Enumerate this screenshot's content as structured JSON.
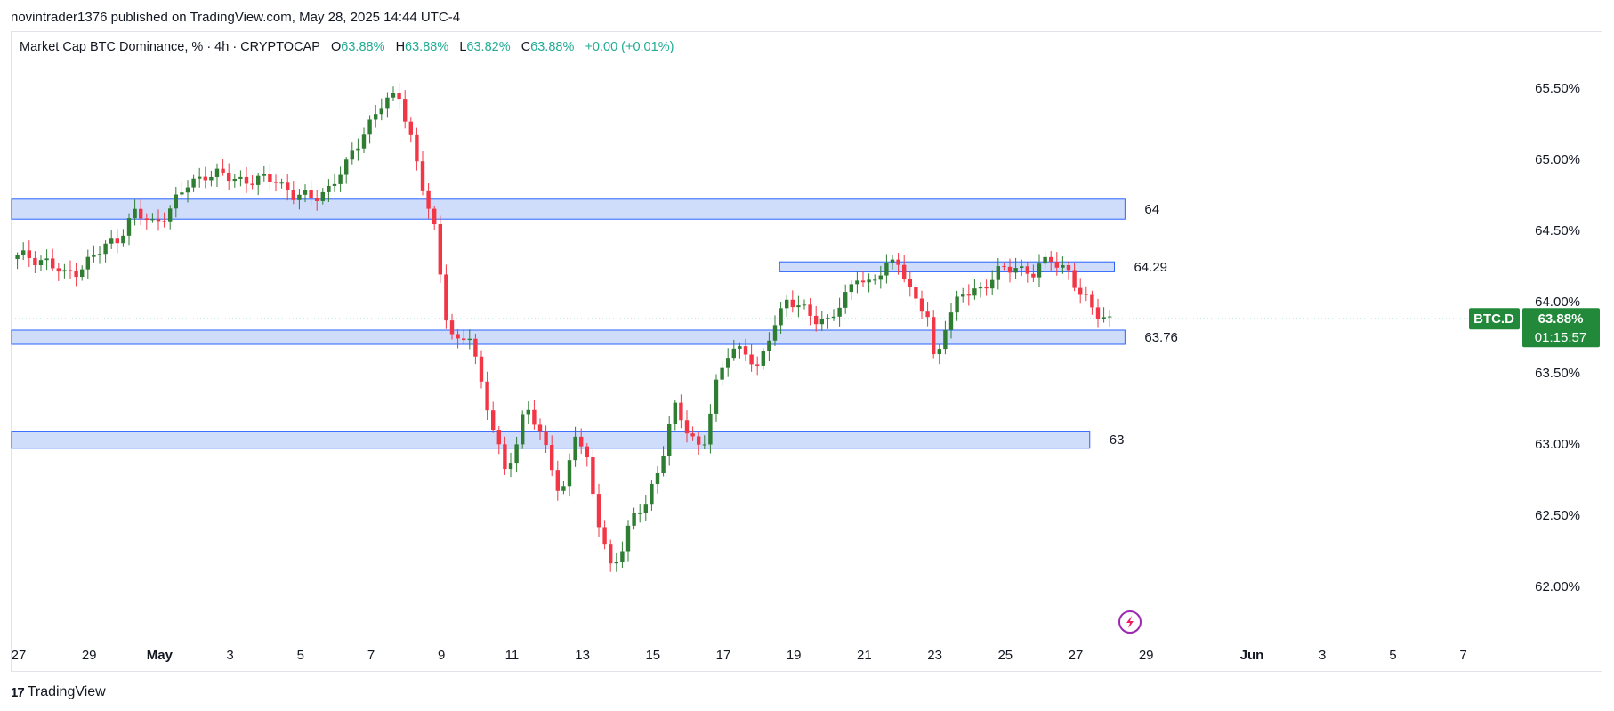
{
  "header": {
    "published": "novintrader1376 published on TradingView.com, May 28, 2025 14:44 UTC-4"
  },
  "legend": {
    "symbol": "Market Cap BTC Dominance, % · 4h · CRYPTOCAP",
    "o_label": "O",
    "o_value": "63.88%",
    "h_label": "H",
    "h_value": "63.88%",
    "l_label": "L",
    "l_value": "63.82%",
    "c_label": "C",
    "c_value": "63.88%",
    "change": "+0.00 (+0.01%)"
  },
  "footer": {
    "brand": "TradingView",
    "logo": "17"
  },
  "colors": {
    "up": "#26a69a",
    "up_body": "#2e7d32",
    "down": "#f23645",
    "zone_fill": "#cfddfb",
    "zone_stroke": "#2962ff",
    "badge": "#22883a"
  },
  "chart_data": {
    "type": "candlestick",
    "symbol": "BTC.D",
    "timeframe": "4h",
    "ylim": [
      61.7,
      65.75
    ],
    "yticks": [
      "65.50%",
      "65.00%",
      "64.50%",
      "64.00%",
      "63.50%",
      "63.00%",
      "62.50%",
      "62.00%"
    ],
    "ytick_values": [
      65.5,
      65.0,
      64.5,
      64.0,
      63.5,
      63.0,
      62.5,
      62.0
    ],
    "x_range_days": [
      0,
      40
    ],
    "xticks": [
      {
        "day": 0,
        "label": "27"
      },
      {
        "day": 2,
        "label": "29"
      },
      {
        "day": 4,
        "label": "May"
      },
      {
        "day": 6,
        "label": "3"
      },
      {
        "day": 8,
        "label": "5"
      },
      {
        "day": 10,
        "label": "7"
      },
      {
        "day": 12,
        "label": "9"
      },
      {
        "day": 14,
        "label": "11"
      },
      {
        "day": 16,
        "label": "13"
      },
      {
        "day": 18,
        "label": "15"
      },
      {
        "day": 20,
        "label": "17"
      },
      {
        "day": 22,
        "label": "19"
      },
      {
        "day": 24,
        "label": "21"
      },
      {
        "day": 26,
        "label": "23"
      },
      {
        "day": 28,
        "label": "25"
      },
      {
        "day": 30,
        "label": "27"
      },
      {
        "day": 32,
        "label": "29"
      },
      {
        "day": 35,
        "label": "Jun"
      },
      {
        "day": 37,
        "label": "3"
      },
      {
        "day": 39,
        "label": "5"
      },
      {
        "day": 41,
        "label": "7"
      }
    ],
    "zones": [
      {
        "label": "64",
        "top": 64.72,
        "bottom": 64.58,
        "start_day": 0,
        "end_day": 31.6
      },
      {
        "label": "64.29",
        "top": 64.28,
        "bottom": 64.21,
        "start_day": 21.8,
        "end_day": 31.3
      },
      {
        "label": "63.76",
        "top": 63.8,
        "bottom": 63.7,
        "start_day": 0,
        "end_day": 31.6
      },
      {
        "label": "63",
        "top": 63.09,
        "bottom": 62.97,
        "start_day": 0,
        "end_day": 30.6
      }
    ],
    "last_price": 63.88,
    "last_price_label": "63.88%",
    "countdown": "01:15:57",
    "path_points": [
      [
        0.0,
        64.3
      ],
      [
        0.5,
        64.32
      ],
      [
        1.0,
        64.28
      ],
      [
        1.5,
        64.18
      ],
      [
        2.0,
        64.25
      ],
      [
        2.5,
        64.35
      ],
      [
        3.0,
        64.45
      ],
      [
        3.5,
        64.62
      ],
      [
        4.0,
        64.55
      ],
      [
        4.5,
        64.65
      ],
      [
        5.0,
        64.82
      ],
      [
        5.5,
        64.9
      ],
      [
        6.0,
        64.88
      ],
      [
        6.5,
        64.86
      ],
      [
        7.0,
        64.85
      ],
      [
        7.5,
        64.86
      ],
      [
        8.0,
        64.75
      ],
      [
        8.5,
        64.72
      ],
      [
        9.0,
        64.8
      ],
      [
        9.5,
        64.95
      ],
      [
        10.0,
        65.2
      ],
      [
        10.5,
        65.38
      ],
      [
        11.0,
        65.45
      ],
      [
        11.3,
        65.2
      ],
      [
        11.6,
        64.85
      ],
      [
        12.0,
        64.5
      ],
      [
        12.3,
        63.95
      ],
      [
        12.6,
        63.7
      ],
      [
        13.0,
        63.75
      ],
      [
        13.3,
        63.45
      ],
      [
        13.6,
        63.2
      ],
      [
        14.0,
        62.8
      ],
      [
        14.3,
        62.95
      ],
      [
        14.6,
        63.3
      ],
      [
        14.9,
        63.15
      ],
      [
        15.3,
        62.85
      ],
      [
        15.6,
        62.6
      ],
      [
        16.0,
        63.1
      ],
      [
        16.3,
        62.9
      ],
      [
        16.6,
        62.5
      ],
      [
        17.0,
        62.15
      ],
      [
        17.3,
        62.25
      ],
      [
        17.6,
        62.45
      ],
      [
        18.0,
        62.6
      ],
      [
        18.4,
        62.85
      ],
      [
        18.8,
        63.25
      ],
      [
        19.2,
        63.1
      ],
      [
        19.6,
        62.95
      ],
      [
        20.0,
        63.4
      ],
      [
        20.4,
        63.7
      ],
      [
        20.8,
        63.65
      ],
      [
        21.2,
        63.5
      ],
      [
        21.6,
        63.85
      ],
      [
        22.0,
        64.0
      ],
      [
        22.4,
        63.95
      ],
      [
        22.8,
        63.9
      ],
      [
        23.2,
        63.85
      ],
      [
        23.6,
        64.0
      ],
      [
        24.0,
        64.2
      ],
      [
        24.4,
        64.1
      ],
      [
        24.8,
        64.25
      ],
      [
        25.2,
        64.3
      ],
      [
        25.6,
        64.0
      ],
      [
        26.0,
        63.9
      ],
      [
        26.2,
        63.55
      ],
      [
        26.5,
        63.85
      ],
      [
        27.0,
        64.05
      ],
      [
        27.5,
        64.1
      ],
      [
        28.0,
        64.2
      ],
      [
        28.5,
        64.25
      ],
      [
        29.0,
        64.2
      ],
      [
        29.5,
        64.3
      ],
      [
        30.0,
        64.22
      ],
      [
        30.3,
        64.05
      ],
      [
        30.7,
        63.95
      ],
      [
        31.0,
        63.9
      ],
      [
        31.3,
        63.86
      ]
    ]
  }
}
